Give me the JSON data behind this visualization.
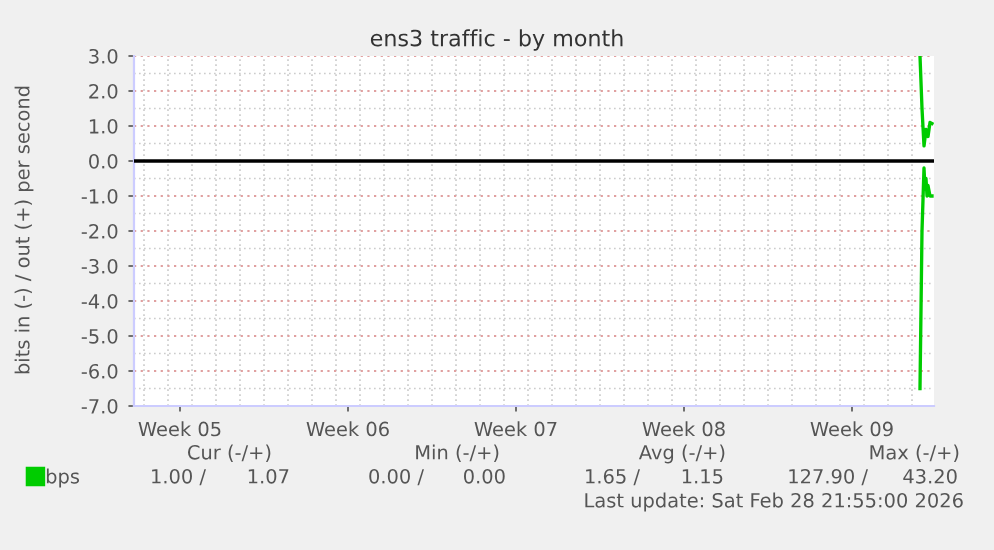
{
  "chart_data": {
    "type": "line",
    "title": "ens3 traffic - by month",
    "ylabel": "bits in (-) / out (+) per second",
    "xlim": [
      "2026-01-26T14:00",
      "2026-02-28T22:00"
    ],
    "xticks": [
      {
        "value": "2026-01-28T12:00",
        "label": "Week 05"
      },
      {
        "value": "2026-02-04T12:00",
        "label": "Week 06"
      },
      {
        "value": "2026-02-11T12:00",
        "label": "Week 07"
      },
      {
        "value": "2026-02-18T12:00",
        "label": "Week 08"
      },
      {
        "value": "2026-02-25T12:00",
        "label": "Week 09"
      }
    ],
    "ylim": [
      -7.0,
      3.0
    ],
    "yticks": [
      {
        "value": 3,
        "label": "3.0"
      },
      {
        "value": 2,
        "label": "2.0"
      },
      {
        "value": 1,
        "label": "1.0"
      },
      {
        "value": 0,
        "label": "0.0"
      },
      {
        "value": -1,
        "label": "-1.0"
      },
      {
        "value": -2,
        "label": "-2.0"
      },
      {
        "value": -3,
        "label": "-3.0"
      },
      {
        "value": -4,
        "label": "-4.0"
      },
      {
        "value": -5,
        "label": "-5.0"
      },
      {
        "value": -6,
        "label": "-6.0"
      },
      {
        "value": -7,
        "label": "-7.0"
      }
    ],
    "grid": true,
    "legend": "bottom left",
    "marker": "none",
    "line_style": "solid",
    "ref_lines": [
      {
        "axis": "y",
        "value": 0,
        "color": "#000000"
      }
    ],
    "series": [
      {
        "name": "bps",
        "color": "#00cc00",
        "x": [
          "2026-02-28T08:00",
          "2026-02-28T10:00",
          "2026-02-28T12:00",
          "2026-02-28T14:00",
          "2026-02-28T16:00",
          "2026-02-28T18:00",
          "2026-02-28T20:00"
        ],
        "values": [
          3.0,
          1.5,
          0.43,
          0.9,
          0.7,
          1.1,
          1.07
        ]
      },
      {
        "color": "#00cc00",
        "x": [
          "2026-02-28T08:00",
          "2026-02-28T10:00",
          "2026-02-28T12:00",
          "2026-02-28T13:00",
          "2026-02-28T14:00",
          "2026-02-28T15:00",
          "2026-02-28T16:00",
          "2026-02-28T18:00",
          "2026-02-28T20:00"
        ],
        "values": [
          -6.5,
          -2.0,
          -0.2,
          -0.8,
          -0.5,
          -1.0,
          -0.7,
          -1.0,
          -1.0
        ]
      }
    ],
    "annotations": [
      "Cur (-/+)",
      "Min (-/+)",
      "Avg (-/+)",
      "Max (-/+)",
      "1.00 /",
      "1.07",
      "0.00 /",
      "0.00",
      "1.65 /",
      "1.15",
      "127.90 /",
      "43.20",
      "Last update: Sat Feb 28 21:55:00 2026"
    ]
  }
}
